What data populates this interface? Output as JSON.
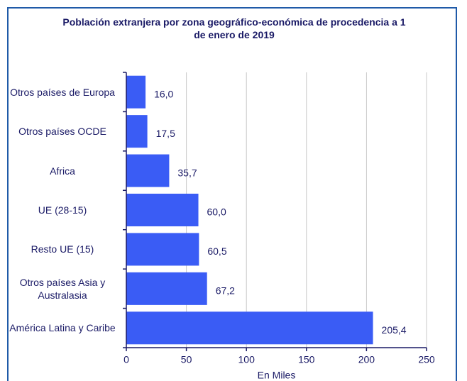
{
  "chart_data": {
    "type": "barh",
    "title": "Población extranjera por zona geográfico-económica de procedencia a 1 de enero de 2019",
    "categories": [
      "Otros países de Europa",
      "Otros países OCDE",
      "Africa",
      "UE (28-15)",
      "Resto UE (15)",
      "Otros países Asia y Australasia",
      "América Latina y Caribe"
    ],
    "values": [
      16.0,
      17.5,
      35.7,
      60.0,
      60.5,
      67.2,
      205.4
    ],
    "value_labels": [
      "16,0",
      "17,5",
      "35,7",
      "60,0",
      "60,5",
      "67,2",
      "205,4"
    ],
    "color": "#3a5cf5",
    "xlabel": "En Miles",
    "xlim": [
      0,
      250
    ],
    "xticks": [
      0,
      50,
      100,
      150,
      200,
      250
    ],
    "grid": true
  }
}
